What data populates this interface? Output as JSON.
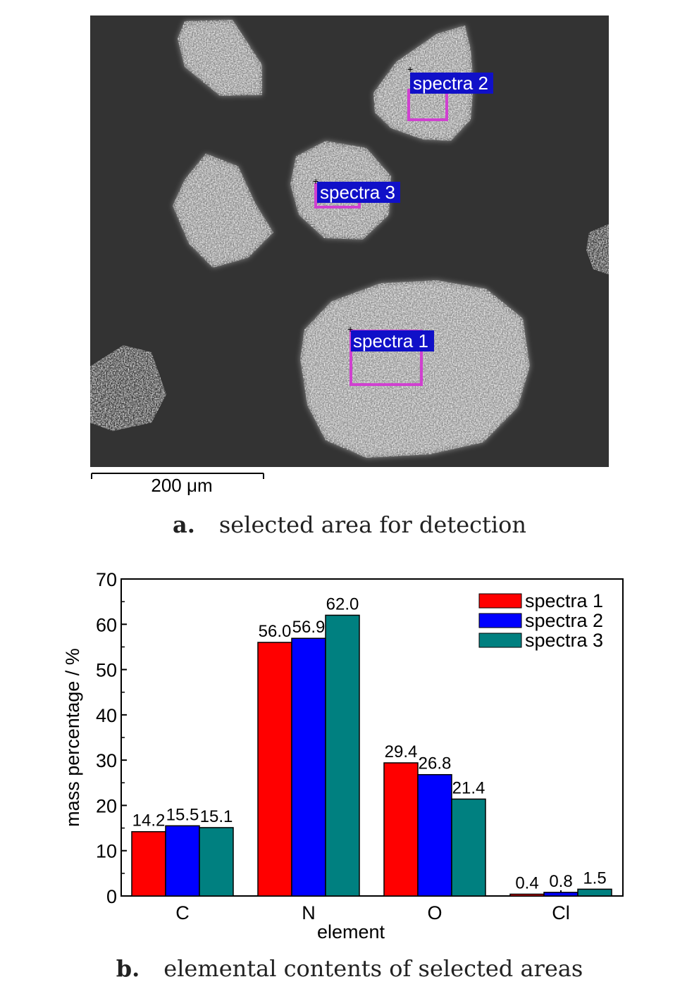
{
  "panel_a": {
    "region_labels": [
      "spectra 1",
      "spectra 2",
      "spectra 3"
    ],
    "scale_bar_label": "200 μm",
    "caption_letter": "a.",
    "caption_text": "selected area for detection"
  },
  "panel_b": {
    "caption_letter": "b.",
    "caption_text": "elemental contents of selected areas"
  },
  "chart_data": {
    "type": "bar",
    "categories": [
      "C",
      "N",
      "O",
      "Cl"
    ],
    "series": [
      {
        "name": "spectra 1",
        "values": [
          14.2,
          56.0,
          29.4,
          0.4
        ],
        "labels": [
          "14.2",
          "56.0",
          "29.4",
          "0.4"
        ],
        "color": "#ff0000"
      },
      {
        "name": "spectra 2",
        "values": [
          15.5,
          56.9,
          26.8,
          0.8
        ],
        "labels": [
          "15.5",
          "56.9",
          "26.8",
          "0.8"
        ],
        "color": "#0000ff"
      },
      {
        "name": "spectra 3",
        "values": [
          15.1,
          62.0,
          21.4,
          1.5
        ],
        "labels": [
          "15.1",
          "62.0",
          "21.4",
          "1.5"
        ],
        "color": "#008080"
      }
    ],
    "xlabel": "element",
    "ylabel": "mass percentage / %",
    "ylim": [
      0,
      70
    ],
    "yticks": [
      0,
      10,
      20,
      30,
      40,
      50,
      60,
      70
    ],
    "legend": "top-right",
    "grid": false
  }
}
